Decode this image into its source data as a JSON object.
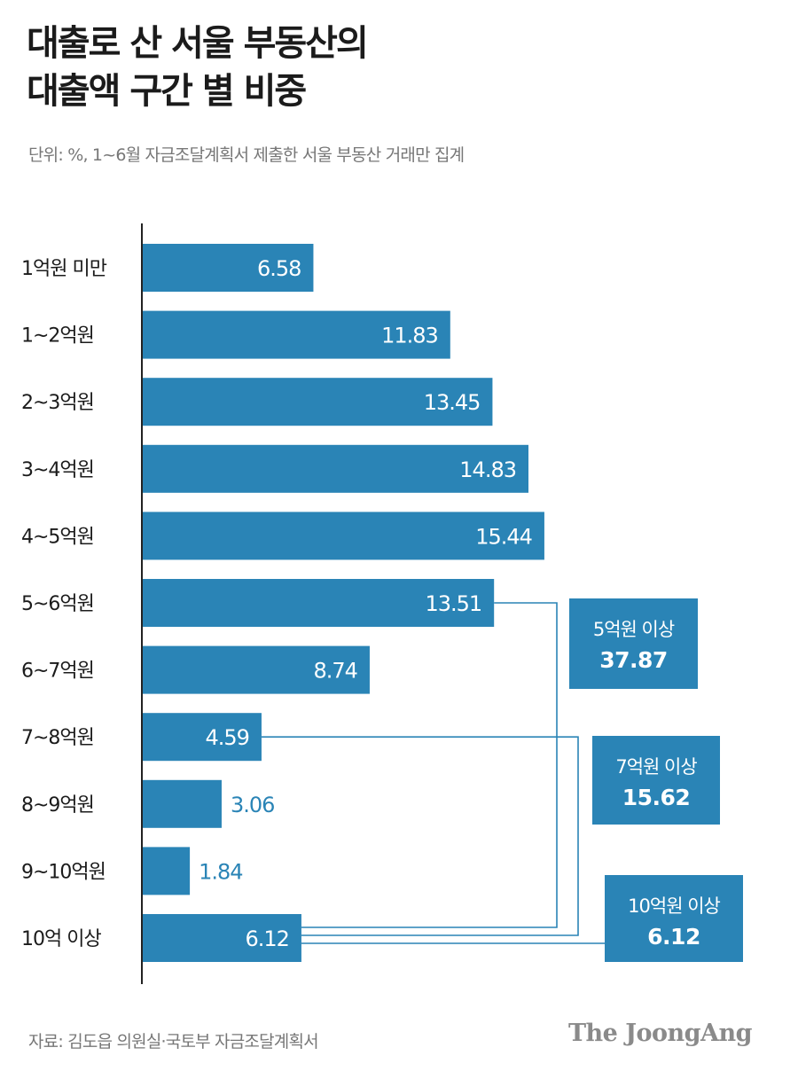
{
  "title": {
    "line1": "대출로 산 서울 부동산의",
    "line2": "대출액 구간 별 비중"
  },
  "subtitle": "단위: %, 1~6월 자금조달계획서 제출한 서울 부동산 거래만 집계",
  "colors": {
    "bar": "#2a84b6",
    "label_inside": "#ffffff",
    "label_outside": "#2a84b6",
    "axis": "#222222",
    "connector": "#2a84b6"
  },
  "chart_data": {
    "type": "bar",
    "orientation": "horizontal",
    "categories": [
      "1억원 미만",
      "1~2억원",
      "2~3억원",
      "3~4억원",
      "4~5억원",
      "5~6억원",
      "6~7억원",
      "7~8억원",
      "8~9억원",
      "9~10억원",
      "10억 이상"
    ],
    "values": [
      6.58,
      11.83,
      13.45,
      14.83,
      15.44,
      13.51,
      8.74,
      4.59,
      3.06,
      1.84,
      6.12
    ],
    "value_labels": [
      "6.58",
      "11.83",
      "13.45",
      "14.83",
      "15.44",
      "13.51",
      "8.74",
      "4.59",
      "3.06",
      "1.84",
      "6.12"
    ],
    "xlim": [
      0,
      18
    ],
    "unit": "%",
    "annotations": [
      {
        "label": "5억원 이상",
        "value": "37.87",
        "from_index": 5,
        "to_index": 10
      },
      {
        "label": "7억원 이상",
        "value": "15.62",
        "from_index": 7,
        "to_index": 10
      },
      {
        "label": "10억원 이상",
        "value": "6.12",
        "from_index": 10,
        "to_index": 10
      }
    ]
  },
  "source": "자료: 김도읍 의원실·국토부 자금조달계획서",
  "brand": "The JoongAng"
}
